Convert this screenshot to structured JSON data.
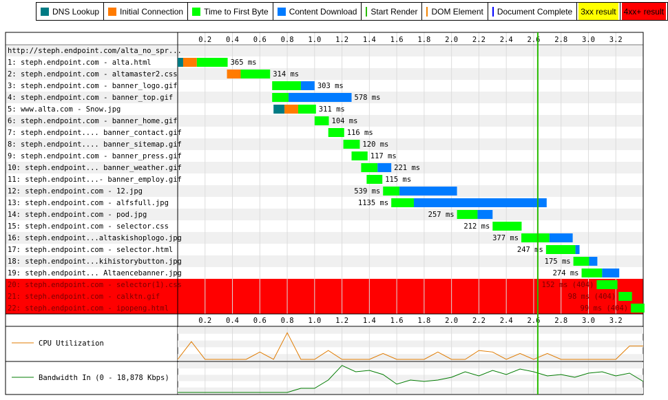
{
  "legend": [
    {
      "label": "DNS Lookup",
      "color": "#007B84",
      "kind": "box"
    },
    {
      "label": "Initial Connection",
      "color": "#FF7B00",
      "kind": "box"
    },
    {
      "label": "Time to First Byte",
      "color": "#00FF00",
      "kind": "box"
    },
    {
      "label": "Content Download",
      "color": "#007BFF",
      "kind": "box"
    },
    {
      "label": "Start Render",
      "color": "#28BC00",
      "kind": "line"
    },
    {
      "label": "DOM Element",
      "color": "#F28300",
      "kind": "line"
    },
    {
      "label": "Document Complete",
      "color": "#0000FF",
      "kind": "line"
    },
    {
      "label": "3xx result",
      "color": "#FFFF00",
      "kind": "highlight"
    },
    {
      "label": "4xx+ result",
      "color": "#FF0000",
      "kind": "highlight"
    }
  ],
  "chart_data": {
    "type": "waterfall",
    "x_unit": "seconds",
    "xlim": [
      0,
      3.4
    ],
    "ticks": [
      "0.2",
      "0.4",
      "0.6",
      "0.8",
      "1.0",
      "1.2",
      "1.4",
      "1.6",
      "1.8",
      "2.0",
      "2.2",
      "2.4",
      "2.6",
      "2.8",
      "3.0",
      "3.2"
    ],
    "tick_values": [
      0.2,
      0.4,
      0.6,
      0.8,
      1.0,
      1.2,
      1.4,
      1.6,
      1.8,
      2.0,
      2.2,
      2.4,
      2.6,
      2.8,
      3.0,
      3.2
    ],
    "start_render": 2.63,
    "page_label": "http://steph.endpoint.com/alta_no_spr...",
    "requests": [
      {
        "label": "1: steph.endpoint.com - alta.html",
        "start": 0.0,
        "dns": 0.04,
        "connect": 0.1,
        "ttfb": 0.225,
        "download": 0.0,
        "time_label": "365 ms",
        "label_side": "right",
        "status": "ok"
      },
      {
        "label": "2: steph.endpoint.com - altamaster2.css",
        "start": 0.36,
        "dns": 0.0,
        "connect": 0.1,
        "ttfb": 0.215,
        "download": 0.0,
        "time_label": "314 ms",
        "label_side": "right",
        "status": "ok"
      },
      {
        "label": "3: steph.endpoint.com - banner_logo.gif",
        "start": 0.69,
        "dns": 0.0,
        "connect": 0.0,
        "ttfb": 0.21,
        "download": 0.1,
        "time_label": "303 ms",
        "label_side": "right",
        "status": "ok"
      },
      {
        "label": "4: steph.endpoint.com - banner_top.gif",
        "start": 0.69,
        "dns": 0.0,
        "connect": 0.0,
        "ttfb": 0.12,
        "download": 0.46,
        "time_label": "578 ms",
        "label_side": "right",
        "status": "ok"
      },
      {
        "label": "5: www.alta.com - Snow.jpg",
        "start": 0.7,
        "dns": 0.08,
        "connect": 0.1,
        "ttfb": 0.13,
        "download": 0.0,
        "time_label": "311 ms",
        "label_side": "right",
        "status": "ok"
      },
      {
        "label": "6: steph.endpoint.com - banner_home.gif",
        "start": 1.0,
        "dns": 0.0,
        "connect": 0.0,
        "ttfb": 0.104,
        "download": 0.0,
        "time_label": "104 ms",
        "label_side": "right",
        "status": "ok"
      },
      {
        "label": "7: steph.endpoint.... banner_contact.gif",
        "start": 1.1,
        "dns": 0.0,
        "connect": 0.0,
        "ttfb": 0.116,
        "download": 0.0,
        "time_label": "116 ms",
        "label_side": "right",
        "status": "ok"
      },
      {
        "label": "8: steph.endpoint.... banner_sitemap.gif",
        "start": 1.21,
        "dns": 0.0,
        "connect": 0.0,
        "ttfb": 0.12,
        "download": 0.0,
        "time_label": "120 ms",
        "label_side": "right",
        "status": "ok"
      },
      {
        "label": "9: steph.endpoint.com - banner_press.gif",
        "start": 1.27,
        "dns": 0.0,
        "connect": 0.0,
        "ttfb": 0.117,
        "download": 0.0,
        "time_label": "117 ms",
        "label_side": "right",
        "status": "ok"
      },
      {
        "label": "10: steph.endpoint... banner_weather.gif",
        "start": 1.34,
        "dns": 0.0,
        "connect": 0.0,
        "ttfb": 0.12,
        "download": 0.1,
        "time_label": "221 ms",
        "label_side": "right",
        "status": "ok"
      },
      {
        "label": "11: steph.endpoint...- banner_employ.gif",
        "start": 1.38,
        "dns": 0.0,
        "connect": 0.0,
        "ttfb": 0.115,
        "download": 0.0,
        "time_label": "115 ms",
        "label_side": "right",
        "status": "ok"
      },
      {
        "label": "12: steph.endpoint.com - 12.jpg",
        "start": 1.5,
        "dns": 0.0,
        "connect": 0.0,
        "ttfb": 0.12,
        "download": 0.42,
        "time_label": "539 ms",
        "label_side": "left",
        "status": "ok"
      },
      {
        "label": "13: steph.endpoint.com - alfsfull.jpg",
        "start": 1.56,
        "dns": 0.0,
        "connect": 0.0,
        "ttfb": 0.165,
        "download": 0.97,
        "time_label": "1135 ms",
        "label_side": "left",
        "status": "ok"
      },
      {
        "label": "14: steph.endpoint.com - pod.jpg",
        "start": 2.04,
        "dns": 0.0,
        "connect": 0.0,
        "ttfb": 0.15,
        "download": 0.11,
        "time_label": "257 ms",
        "label_side": "left",
        "status": "ok"
      },
      {
        "label": "15: steph.endpoint.com - selector.css",
        "start": 2.3,
        "dns": 0.0,
        "connect": 0.0,
        "ttfb": 0.212,
        "download": 0.0,
        "time_label": "212 ms",
        "label_side": "left",
        "status": "ok"
      },
      {
        "label": "16: steph.endpoint...altaskishoplogo.jpg",
        "start": 2.51,
        "dns": 0.0,
        "connect": 0.0,
        "ttfb": 0.205,
        "download": 0.17,
        "time_label": "377 ms",
        "label_side": "left",
        "status": "ok"
      },
      {
        "label": "17: steph.endpoint.com - selector.html",
        "start": 2.69,
        "dns": 0.0,
        "connect": 0.0,
        "ttfb": 0.215,
        "download": 0.03,
        "time_label": "247 ms",
        "label_side": "left",
        "status": "ok"
      },
      {
        "label": "18: steph.endpoint...kihistorybutton.jpg",
        "start": 2.89,
        "dns": 0.0,
        "connect": 0.0,
        "ttfb": 0.115,
        "download": 0.06,
        "time_label": "175 ms",
        "label_side": "left",
        "status": "ok"
      },
      {
        "label": "19: steph.endpoint... Altaencebanner.jpg",
        "start": 2.95,
        "dns": 0.0,
        "connect": 0.0,
        "ttfb": 0.15,
        "download": 0.125,
        "time_label": "274 ms",
        "label_side": "left",
        "status": "ok"
      },
      {
        "label": "20: steph.endpoint.com - selector(1).css",
        "start": 3.06,
        "dns": 0.0,
        "connect": 0.0,
        "ttfb": 0.152,
        "download": 0.0,
        "time_label": "152 ms (404)",
        "label_side": "left",
        "status": "error"
      },
      {
        "label": "21: steph.endpoint.com - calktn.gif",
        "start": 3.22,
        "dns": 0.0,
        "connect": 0.0,
        "ttfb": 0.098,
        "download": 0.0,
        "time_label": "98 ms (404)",
        "label_side": "left",
        "status": "error"
      },
      {
        "label": "22: steph.endpoint.com - ipopeng.html",
        "start": 3.31,
        "dns": 0.0,
        "connect": 0.0,
        "ttfb": 0.099,
        "download": 0.0,
        "time_label": "99 ms (404)",
        "label_side": "left",
        "status": "error"
      }
    ],
    "cpu": {
      "label": "CPU Utilization",
      "color": "#E07B00",
      "times": [
        0,
        0.1,
        0.2,
        0.3,
        0.4,
        0.5,
        0.6,
        0.7,
        0.8,
        0.9,
        1.0,
        1.1,
        1.2,
        1.3,
        1.4,
        1.5,
        1.6,
        1.7,
        1.8,
        1.9,
        2.0,
        2.1,
        2.2,
        2.3,
        2.4,
        2.5,
        2.6,
        2.7,
        2.8,
        2.9,
        3.0,
        3.1,
        3.2,
        3.3,
        3.4
      ],
      "values": [
        0,
        60,
        0,
        0,
        0,
        0,
        25,
        0,
        90,
        0,
        0,
        30,
        0,
        0,
        0,
        20,
        0,
        0,
        0,
        25,
        0,
        0,
        30,
        25,
        0,
        20,
        0,
        20,
        0,
        0,
        0,
        0,
        0,
        45,
        45
      ]
    },
    "bandwidth": {
      "label": "Bandwidth In (0 - 18,878 Kbps)",
      "color": "#007B00",
      "times": [
        0,
        0.1,
        0.2,
        0.3,
        0.4,
        0.5,
        0.6,
        0.7,
        0.8,
        0.9,
        1.0,
        1.1,
        1.2,
        1.3,
        1.4,
        1.5,
        1.6,
        1.7,
        1.8,
        1.9,
        2.0,
        2.1,
        2.2,
        2.3,
        2.4,
        2.5,
        2.6,
        2.7,
        2.8,
        2.9,
        3.0,
        3.1,
        3.2,
        3.3,
        3.4
      ],
      "values": [
        0,
        0,
        0,
        0,
        0,
        0,
        0,
        0,
        0,
        15,
        15,
        45,
        98,
        75,
        80,
        65,
        30,
        45,
        40,
        45,
        55,
        75,
        60,
        80,
        65,
        85,
        75,
        60,
        65,
        55,
        70,
        75,
        60,
        70,
        40
      ]
    }
  }
}
